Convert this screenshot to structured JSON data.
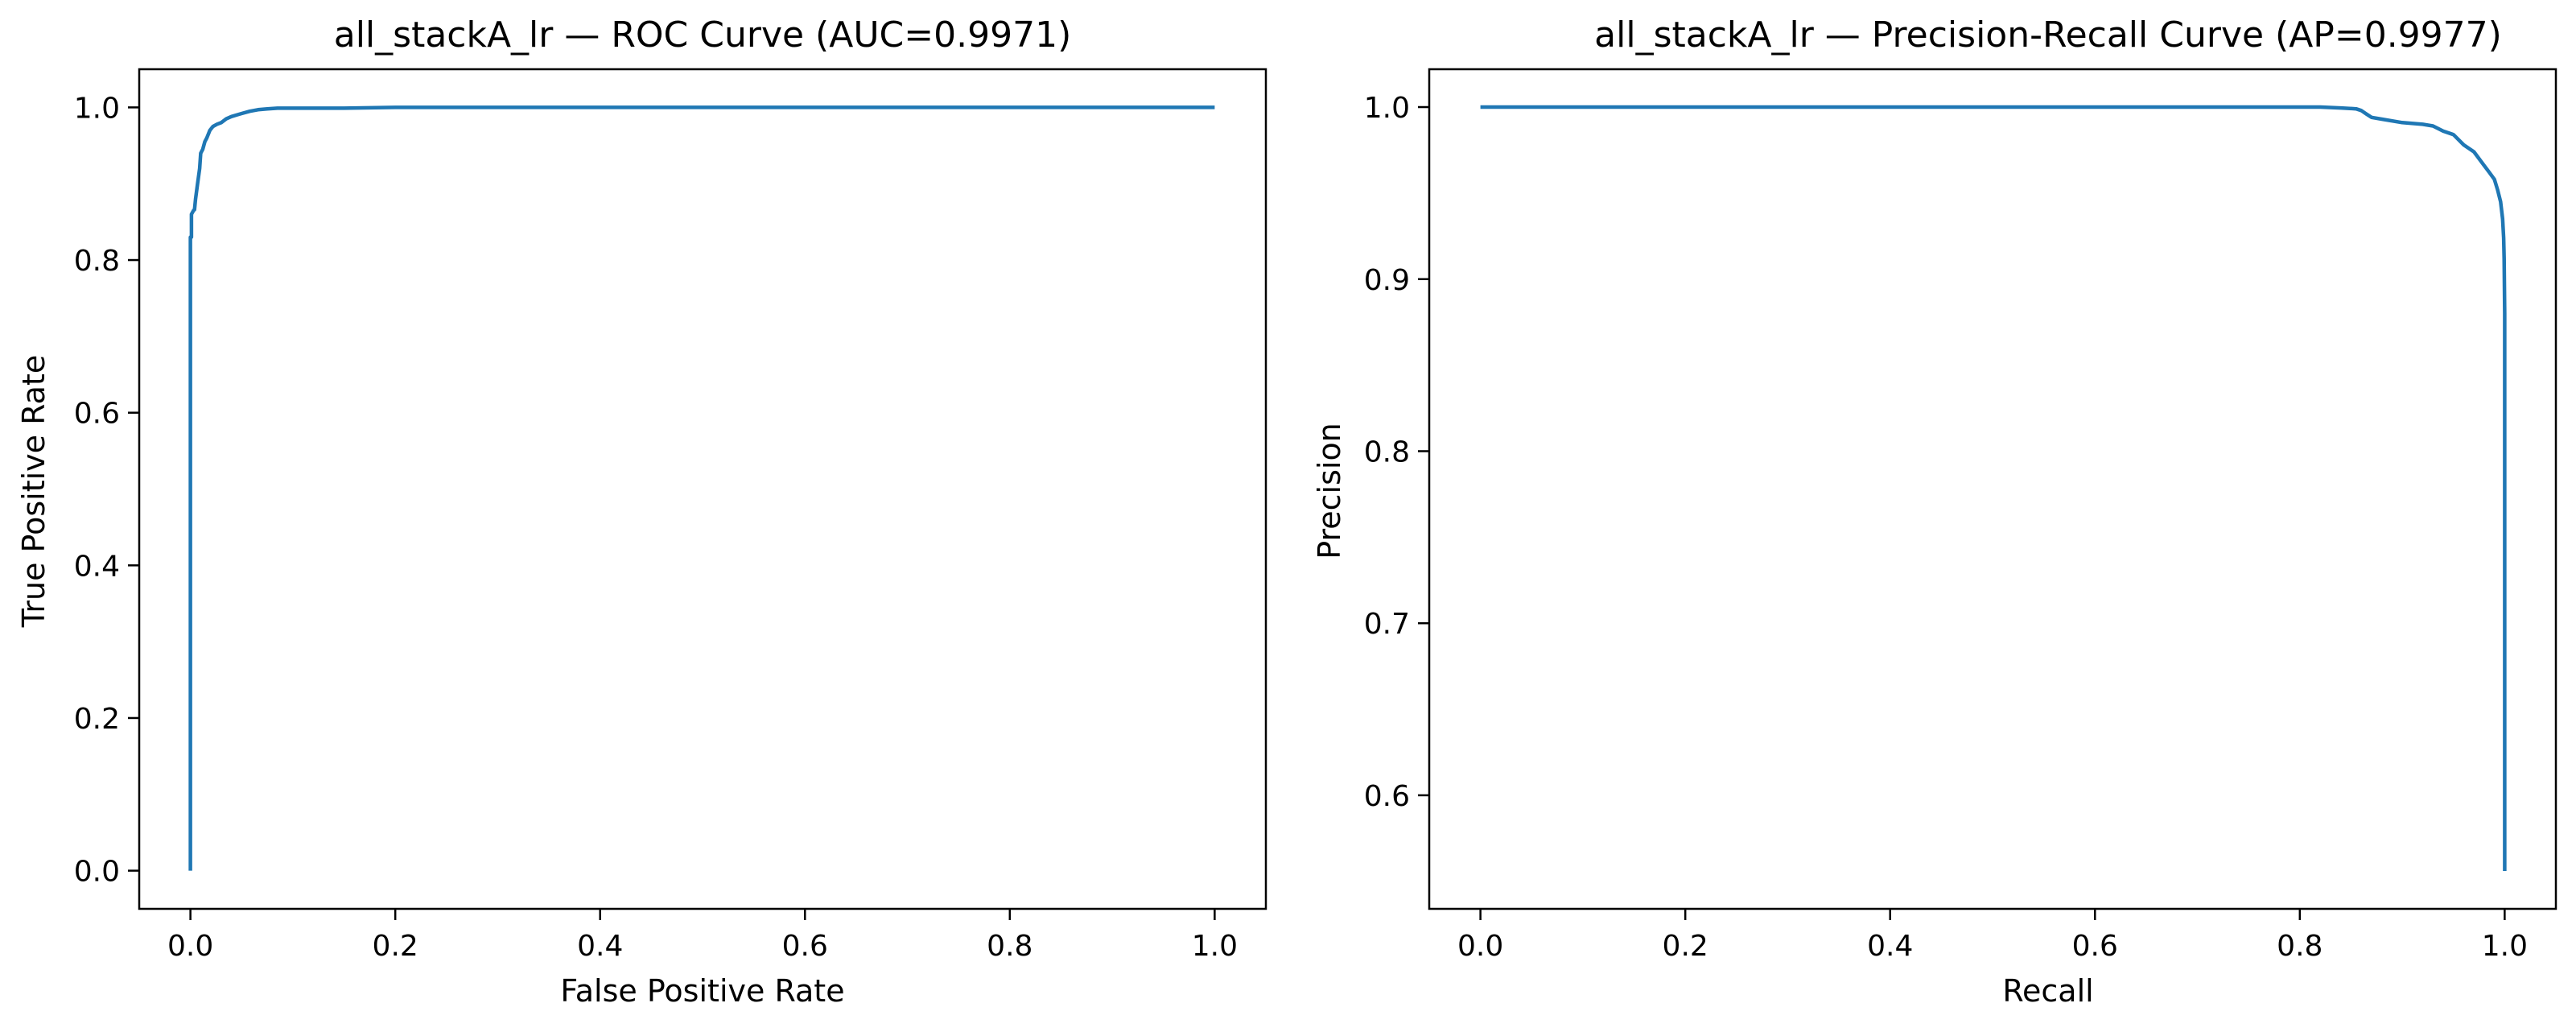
{
  "chart_data": [
    {
      "type": "line",
      "title": "all_stackA_lr — ROC Curve (AUC=0.9971)",
      "xlabel": "False Positive Rate",
      "ylabel": "True Positive Rate",
      "xlim": [
        -0.05,
        1.05
      ],
      "ylim": [
        -0.05,
        1.05
      ],
      "xticks": [
        0.0,
        0.2,
        0.4,
        0.6,
        0.8,
        1.0
      ],
      "yticks": [
        0.0,
        0.2,
        0.4,
        0.6,
        0.8,
        1.0
      ],
      "xtick_labels": [
        "0.0",
        "0.2",
        "0.4",
        "0.6",
        "0.8",
        "1.0"
      ],
      "ytick_labels": [
        "0.0",
        "0.2",
        "0.4",
        "0.6",
        "0.8",
        "1.0"
      ],
      "grid": false,
      "color": "#1f77b4",
      "series": [
        {
          "x": [
            0.0,
            0.0,
            0.001,
            0.001,
            0.003,
            0.004,
            0.005,
            0.007,
            0.009,
            0.01,
            0.012,
            0.014,
            0.016,
            0.019,
            0.022,
            0.026,
            0.03,
            0.035,
            0.04,
            0.045,
            0.05,
            0.058,
            0.066,
            0.075,
            0.085,
            0.1,
            0.15,
            0.2,
            0.3,
            0.5,
            0.7,
            1.0
          ],
          "y": [
            0.0,
            0.83,
            0.83,
            0.86,
            0.865,
            0.866,
            0.88,
            0.9,
            0.92,
            0.94,
            0.945,
            0.955,
            0.96,
            0.97,
            0.975,
            0.978,
            0.98,
            0.985,
            0.988,
            0.99,
            0.992,
            0.995,
            0.997,
            0.998,
            0.999,
            0.999,
            0.999,
            1.0,
            1.0,
            1.0,
            1.0,
            1.0
          ]
        }
      ]
    },
    {
      "type": "line",
      "title": "all_stackA_lr — Precision-Recall Curve (AP=0.9977)",
      "xlabel": "Recall",
      "ylabel": "Precision",
      "xlim": [
        -0.05,
        1.05
      ],
      "ylim": [
        0.534,
        1.022
      ],
      "xticks": [
        0.0,
        0.2,
        0.4,
        0.6,
        0.8,
        1.0
      ],
      "yticks": [
        0.6,
        0.7,
        0.8,
        0.9,
        1.0
      ],
      "xtick_labels": [
        "0.0",
        "0.2",
        "0.4",
        "0.6",
        "0.8",
        "1.0"
      ],
      "ytick_labels": [
        "0.6",
        "0.7",
        "0.8",
        "0.9",
        "1.0"
      ],
      "grid": false,
      "color": "#1f77b4",
      "series": [
        {
          "x": [
            0.0,
            0.2,
            0.5,
            0.75,
            0.82,
            0.84,
            0.855,
            0.86,
            0.865,
            0.87,
            0.88,
            0.9,
            0.92,
            0.93,
            0.94,
            0.95,
            0.96,
            0.97,
            0.98,
            0.985,
            0.99,
            0.993,
            0.996,
            0.998,
            0.999,
            0.9995,
            1.0,
            1.0,
            1.0
          ],
          "y": [
            1.0,
            1.0,
            1.0,
            1.0,
            1.0,
            0.9995,
            0.999,
            0.998,
            0.996,
            0.994,
            0.993,
            0.991,
            0.99,
            0.989,
            0.986,
            0.984,
            0.978,
            0.974,
            0.966,
            0.962,
            0.958,
            0.952,
            0.945,
            0.935,
            0.924,
            0.912,
            0.88,
            0.7,
            0.556
          ]
        }
      ]
    }
  ]
}
